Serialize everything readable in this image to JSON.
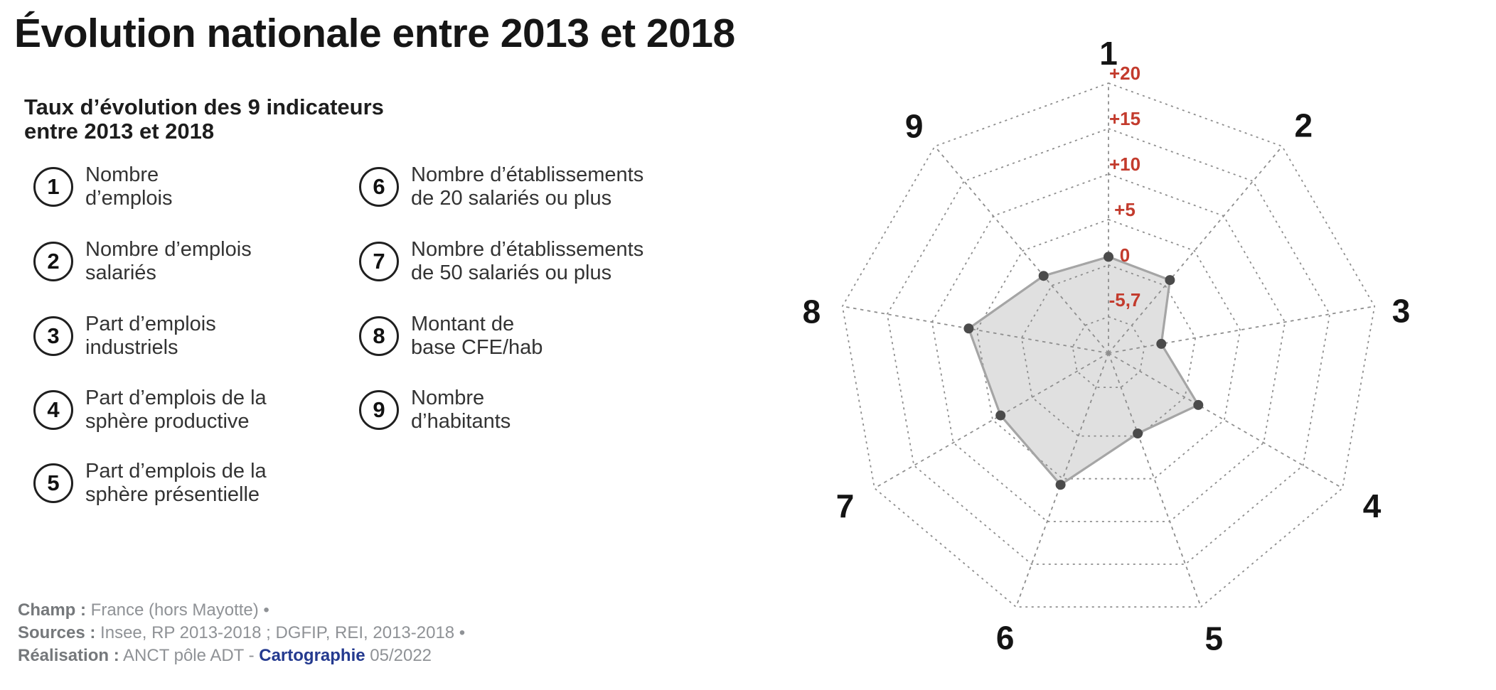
{
  "header": {
    "title": "Évolution nationale entre 2013 et 2018",
    "subtitle_line1": "Taux d’évolution des 9 indicateurs",
    "subtitle_line2": "entre 2013 et 2018"
  },
  "legend": {
    "items": [
      {
        "num": "1",
        "line1": "Nombre",
        "line2": "d’emplois"
      },
      {
        "num": "2",
        "line1": "Nombre d’emplois",
        "line2": "salariés"
      },
      {
        "num": "3",
        "line1": "Part d’emplois",
        "line2": "industriels"
      },
      {
        "num": "4",
        "line1": "Part d’emplois de la",
        "line2": "sphère productive"
      },
      {
        "num": "5",
        "line1": "Part d’emplois de la",
        "line2": "sphère présentielle"
      },
      {
        "num": "6",
        "line1": "Nombre d’établissements",
        "line2": "de 20 salariés ou plus"
      },
      {
        "num": "7",
        "line1": "Nombre d’établissements",
        "line2": "de 50 salariés ou plus"
      },
      {
        "num": "8",
        "line1": "Montant de",
        "line2": "base CFE/hab"
      },
      {
        "num": "9",
        "line1": "Nombre",
        "line2": "d’habitants"
      }
    ]
  },
  "footer": {
    "champ_label": "Champ :",
    "champ_value": "France (hors Mayotte) •",
    "sources_label": "Sources :",
    "sources_value": "Insee, RP 2013-2018 ; DGFIP, REI, 2013-2018 •",
    "realisation_label": "Réalisation :",
    "realisation_value_pre": "ANCT pôle ADT -",
    "realisation_brand": "Cartographie",
    "realisation_value_post": "05/2022"
  },
  "chart_data": {
    "type": "radar",
    "categories": [
      "1",
      "2",
      "3",
      "4",
      "5",
      "6",
      "7",
      "8",
      "9"
    ],
    "values": [
      0.9,
      0.8,
      -3.8,
      1.7,
      -0.3,
      5.7,
      4.0,
      5.9,
      1.4
    ],
    "series_name": "Taux d’évolution 2013-2018 (%)",
    "scale": {
      "min_center": -9.7,
      "max": 20,
      "tick_values": [
        20,
        15,
        10,
        5,
        0,
        -5.7
      ],
      "tick_labels": [
        "+20",
        "+15",
        "+10",
        "+5",
        "0",
        "-5,7"
      ]
    },
    "layout": {
      "start_axis_angle_deg": 90,
      "direction": "clockwise",
      "grid": "dotted"
    },
    "style": {
      "tick_label_color": "#c33b2d",
      "grid_color": "#8e8e8e",
      "fill_color": "#dadada",
      "outline_color": "#a5a5a5",
      "point_color": "#4b4b4b",
      "axis_label_color": "#141414"
    }
  }
}
